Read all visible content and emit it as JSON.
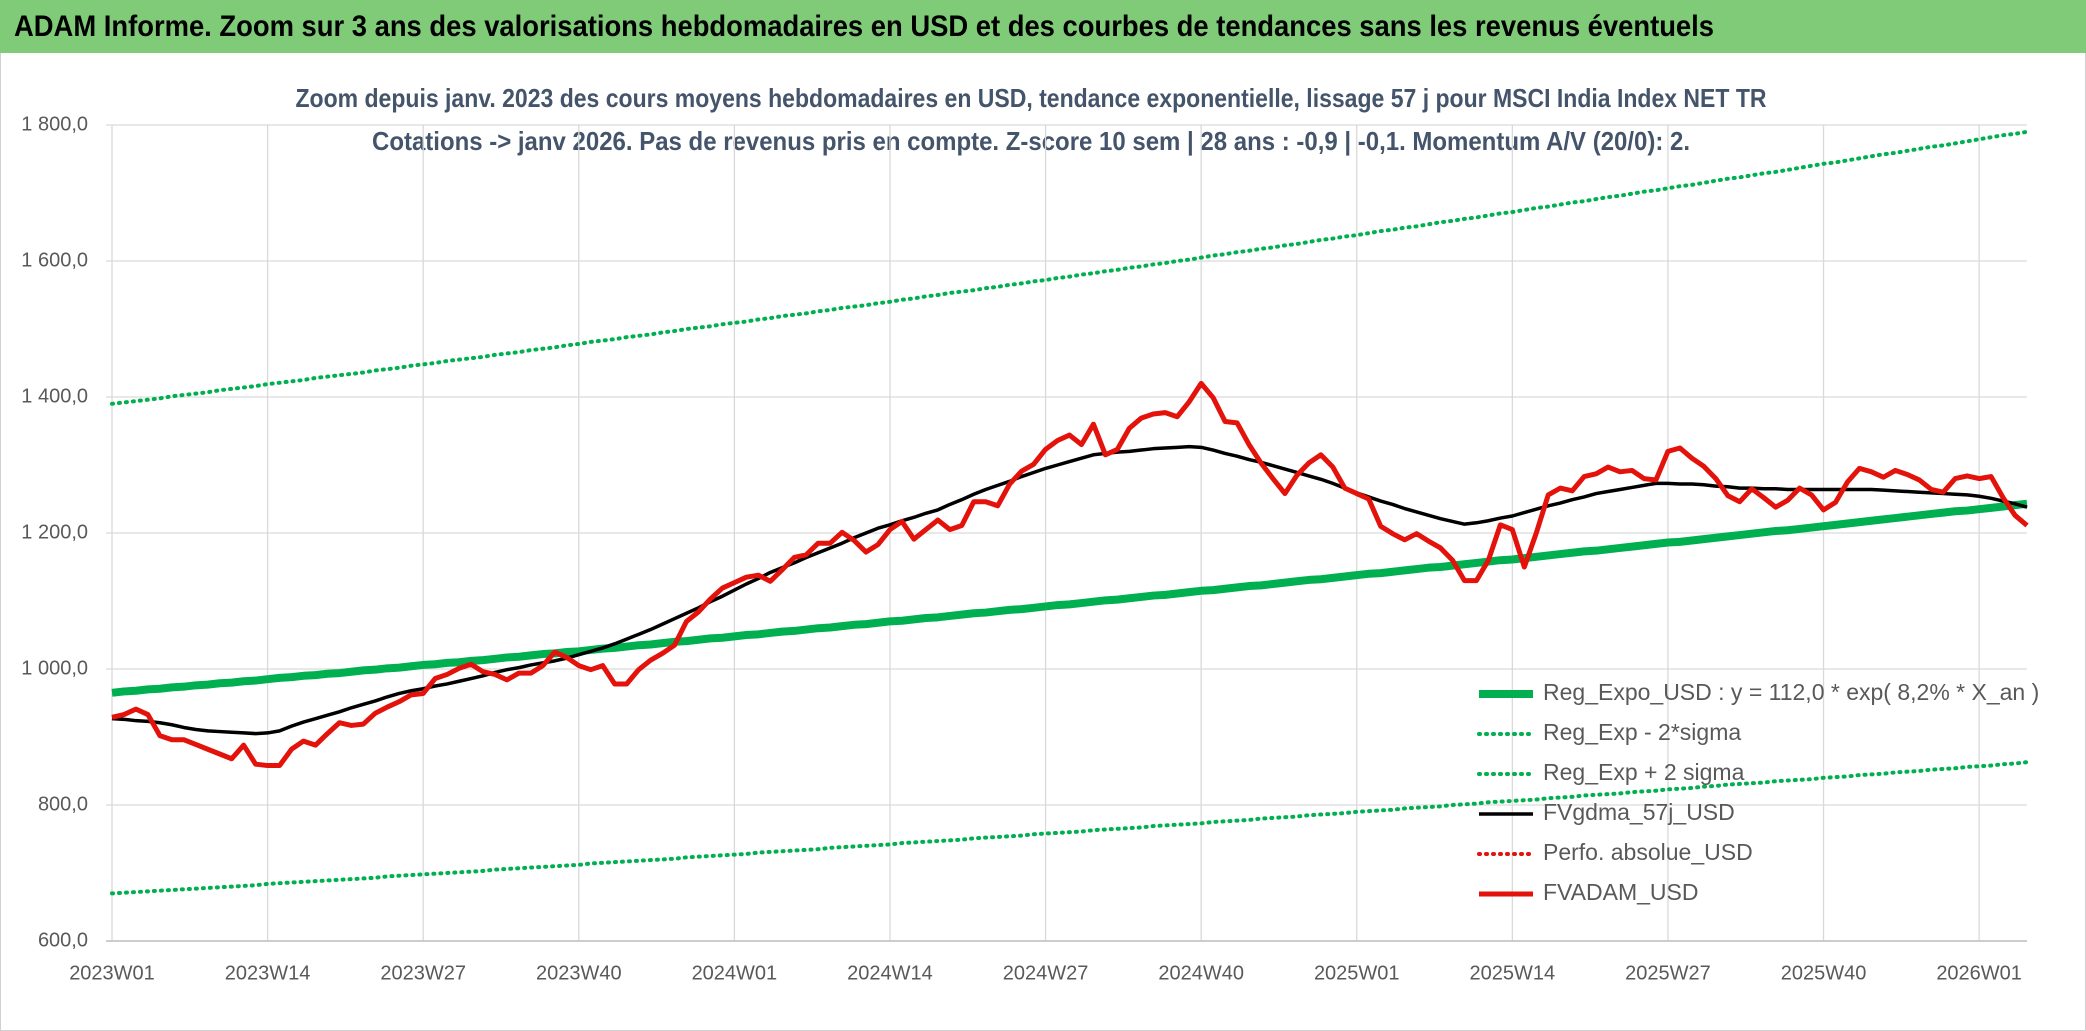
{
  "chart_data": {
    "type": "line",
    "title": "ADAM Informe. Zoom sur 3 ans des valorisations hebdomadaires en USD et des courbes de tendances sans les revenus éventuels",
    "subtitle": [
      "Zoom depuis janv. 2023 des cours moyens hebdomadaires en USD, tendance exponentielle, lissage 57 j pour MSCI India Index NET TR",
      "Cotations -> janv 2026. Pas de revenus pris en compte. Z-score 10 sem | 28 ans : -0,9 | -0,1. Momentum A/V (20/0): 2."
    ],
    "categories": [
      "2023W01",
      null,
      null,
      null,
      null,
      null,
      null,
      null,
      null,
      null,
      null,
      null,
      null,
      "2023W14",
      null,
      null,
      null,
      null,
      null,
      null,
      null,
      null,
      null,
      null,
      null,
      null,
      "2023W27",
      null,
      null,
      null,
      null,
      null,
      null,
      null,
      null,
      null,
      null,
      null,
      null,
      "2023W40",
      null,
      null,
      null,
      null,
      null,
      null,
      null,
      null,
      null,
      null,
      null,
      null,
      "2024W01",
      null,
      null,
      null,
      null,
      null,
      null,
      null,
      null,
      null,
      null,
      null,
      null,
      "2024W14",
      null,
      null,
      null,
      null,
      null,
      null,
      null,
      null,
      null,
      null,
      null,
      null,
      "2024W27",
      null,
      null,
      null,
      null,
      null,
      null,
      null,
      null,
      null,
      null,
      null,
      null,
      "2024W40",
      null,
      null,
      null,
      null,
      null,
      null,
      null,
      null,
      null,
      null,
      null,
      null,
      "2025W01",
      null,
      null,
      null,
      null,
      null,
      null,
      null,
      null,
      null,
      null,
      null,
      null,
      "2025W14",
      null,
      null,
      null,
      null,
      null,
      null,
      null,
      null,
      null,
      null,
      null,
      null,
      "2025W27",
      null,
      null,
      null,
      null,
      null,
      null,
      null,
      null,
      null,
      null,
      null,
      null,
      "2025W40",
      null,
      null,
      null,
      null,
      null,
      null,
      null,
      null,
      null,
      null,
      null,
      null,
      "2026W01",
      null,
      null,
      null,
      null
    ],
    "series": [
      {
        "name": "Reg_Expo_USD : y = 112,0 * exp( 8,2% *  X_an )",
        "color": "#00b050",
        "dash": "solid",
        "values": [
          965,
          967,
          968,
          970,
          971,
          973,
          974,
          976,
          977,
          979,
          980,
          982,
          983,
          985,
          987,
          988,
          990,
          991,
          993,
          994,
          996,
          998,
          999,
          1001,
          1002,
          1004,
          1006,
          1007,
          1009,
          1010,
          1012,
          1013,
          1015,
          1017,
          1018,
          1020,
          1022,
          1023,
          1025,
          1026,
          1028,
          1030,
          1031,
          1033,
          1035,
          1036,
          1038,
          1040,
          1041,
          1043,
          1045,
          1046,
          1048,
          1050,
          1051,
          1053,
          1055,
          1056,
          1058,
          1060,
          1061,
          1063,
          1065,
          1066,
          1068,
          1070,
          1071,
          1073,
          1075,
          1076,
          1078,
          1080,
          1082,
          1083,
          1085,
          1087,
          1088,
          1090,
          1092,
          1094,
          1095,
          1097,
          1099,
          1101,
          1102,
          1104,
          1106,
          1108,
          1109,
          1111,
          1113,
          1115,
          1116,
          1118,
          1120,
          1122,
          1123,
          1125,
          1127,
          1129,
          1131,
          1132,
          1134,
          1136,
          1138,
          1140,
          1141,
          1143,
          1145,
          1147,
          1149,
          1150,
          1152,
          1154,
          1156,
          1158,
          1160,
          1161,
          1163,
          1165,
          1167,
          1169,
          1171,
          1173,
          1174,
          1176,
          1178,
          1180,
          1182,
          1184,
          1186,
          1187,
          1189,
          1191,
          1193,
          1195,
          1197,
          1199,
          1201,
          1203,
          1204,
          1206,
          1208,
          1210,
          1212,
          1214,
          1216,
          1218,
          1220,
          1222,
          1224,
          1226,
          1228,
          1230,
          1232,
          1233,
          1235,
          1237,
          1239,
          1241,
          1243
        ]
      },
      {
        "name": "Reg_Exp - 2*sigma",
        "color": "#00b050",
        "dash": "dotted",
        "values": [
          670,
          671,
          672,
          673,
          674,
          675,
          676,
          677,
          678,
          679,
          680,
          681,
          682,
          684,
          685,
          686,
          687,
          688,
          689,
          690,
          691,
          692,
          693,
          695,
          696,
          697,
          698,
          699,
          700,
          701,
          702,
          703,
          705,
          706,
          707,
          708,
          709,
          710,
          711,
          712,
          714,
          715,
          716,
          717,
          718,
          719,
          720,
          721,
          723,
          724,
          725,
          726,
          727,
          728,
          730,
          731,
          732,
          733,
          734,
          735,
          737,
          738,
          739,
          740,
          741,
          742,
          744,
          745,
          746,
          747,
          748,
          749,
          751,
          752,
          753,
          754,
          755,
          757,
          758,
          759,
          760,
          761,
          763,
          764,
          765,
          766,
          767,
          769,
          770,
          771,
          772,
          773,
          775,
          776,
          777,
          778,
          780,
          781,
          782,
          783,
          785,
          786,
          787,
          788,
          790,
          791,
          792,
          793,
          795,
          796,
          797,
          798,
          800,
          801,
          802,
          804,
          805,
          806,
          807,
          808,
          810,
          811,
          812,
          814,
          815,
          816,
          817,
          819,
          820,
          821,
          823,
          824,
          825,
          827,
          828,
          830,
          831,
          832,
          833,
          835,
          836,
          837,
          838,
          840,
          841,
          842,
          844,
          845,
          846,
          848,
          849,
          850,
          852,
          853,
          854,
          856,
          857,
          858,
          860,
          861,
          863
        ]
      },
      {
        "name": "Reg_Exp + 2 sigma",
        "color": "#00b050",
        "dash": "dotted",
        "values": [
          1390,
          1392,
          1394,
          1396,
          1398,
          1401,
          1403,
          1405,
          1407,
          1410,
          1412,
          1414,
          1416,
          1419,
          1421,
          1423,
          1425,
          1428,
          1430,
          1432,
          1434,
          1436,
          1439,
          1441,
          1443,
          1446,
          1448,
          1450,
          1453,
          1455,
          1457,
          1459,
          1462,
          1464,
          1466,
          1469,
          1471,
          1473,
          1476,
          1478,
          1481,
          1483,
          1485,
          1488,
          1490,
          1492,
          1495,
          1497,
          1500,
          1502,
          1504,
          1507,
          1509,
          1511,
          1514,
          1516,
          1519,
          1521,
          1523,
          1526,
          1528,
          1531,
          1533,
          1535,
          1538,
          1540,
          1543,
          1545,
          1548,
          1550,
          1553,
          1555,
          1557,
          1560,
          1562,
          1565,
          1567,
          1570,
          1572,
          1575,
          1577,
          1580,
          1582,
          1585,
          1587,
          1590,
          1592,
          1595,
          1597,
          1600,
          1602,
          1605,
          1608,
          1610,
          1613,
          1615,
          1618,
          1620,
          1623,
          1625,
          1628,
          1631,
          1633,
          1636,
          1638,
          1641,
          1644,
          1646,
          1649,
          1651,
          1654,
          1657,
          1659,
          1662,
          1664,
          1667,
          1670,
          1672,
          1675,
          1678,
          1680,
          1683,
          1686,
          1688,
          1691,
          1694,
          1696,
          1699,
          1702,
          1704,
          1707,
          1710,
          1712,
          1715,
          1718,
          1721,
          1723,
          1726,
          1729,
          1731,
          1734,
          1737,
          1740,
          1743,
          1745,
          1748,
          1751,
          1754,
          1757,
          1759,
          1762,
          1765,
          1768,
          1770,
          1773,
          1776,
          1779,
          1782,
          1785,
          1787,
          1790
        ]
      },
      {
        "name": "FVgdma_57j_USD",
        "color": "#000000",
        "dash": "solid",
        "values": [
          927,
          926,
          924,
          923,
          921,
          918,
          914,
          911,
          909,
          908,
          907,
          906,
          905,
          906,
          909,
          916,
          922,
          927,
          932,
          937,
          943,
          948,
          953,
          959,
          964,
          968,
          971,
          975,
          978,
          982,
          986,
          990,
          995,
          999,
          1002,
          1006,
          1009,
          1012,
          1016,
          1021,
          1026,
          1031,
          1037,
          1044,
          1051,
          1058,
          1066,
          1074,
          1082,
          1090,
          1099,
          1107,
          1116,
          1125,
          1133,
          1142,
          1149,
          1156,
          1164,
          1171,
          1178,
          1185,
          1193,
          1200,
          1207,
          1212,
          1218,
          1223,
          1229,
          1234,
          1242,
          1249,
          1257,
          1264,
          1270,
          1276,
          1283,
          1289,
          1295,
          1300,
          1305,
          1310,
          1315,
          1317,
          1319,
          1320,
          1322,
          1324,
          1325,
          1326,
          1327,
          1326,
          1322,
          1317,
          1313,
          1308,
          1304,
          1299,
          1294,
          1289,
          1284,
          1279,
          1273,
          1266,
          1259,
          1253,
          1247,
          1242,
          1236,
          1231,
          1226,
          1221,
          1217,
          1213,
          1215,
          1218,
          1222,
          1225,
          1230,
          1235,
          1240,
          1244,
          1249,
          1253,
          1258,
          1261,
          1264,
          1267,
          1270,
          1273,
          1273,
          1272,
          1272,
          1271,
          1269,
          1268,
          1266,
          1266,
          1265,
          1265,
          1264,
          1264,
          1264,
          1264,
          1264,
          1264,
          1264,
          1264,
          1263,
          1262,
          1261,
          1260,
          1259,
          1258,
          1257,
          1256,
          1254,
          1251,
          1247,
          1243,
          1238
        ]
      },
      {
        "name": "Perfo. absolue_USD",
        "color": "#e3120b",
        "dash": "dotted",
        "values": [
          null,
          null,
          null,
          null,
          null,
          null,
          null,
          null,
          null,
          null,
          null,
          null,
          null,
          null,
          null,
          null,
          null,
          null,
          null,
          null,
          null,
          null,
          null,
          null,
          null,
          null,
          null,
          null,
          null,
          null,
          null,
          null,
          null,
          null,
          null,
          null,
          null,
          null,
          null,
          null,
          null,
          null,
          null,
          null,
          null,
          null,
          null,
          null,
          null,
          null,
          null,
          null,
          null,
          null,
          null,
          null,
          null,
          null,
          null,
          null,
          null,
          null,
          null,
          null,
          null,
          null,
          null,
          null,
          null,
          null,
          null,
          null,
          null,
          null,
          null,
          null,
          null,
          null,
          null,
          null,
          null,
          null,
          null,
          null,
          null,
          null,
          null,
          null,
          null,
          null,
          null,
          null,
          null,
          null,
          null,
          null,
          null,
          null,
          null,
          null,
          null,
          null,
          null,
          null,
          null,
          null,
          null,
          null,
          null,
          null,
          null,
          null,
          null,
          null,
          null,
          null,
          null,
          null,
          null,
          null,
          null,
          null,
          null,
          null,
          null,
          null,
          null,
          null,
          null,
          null,
          null,
          null,
          null,
          null,
          null,
          null,
          null,
          null,
          null,
          null,
          null,
          null,
          null,
          null,
          null,
          null,
          null,
          null,
          null,
          null,
          null,
          null,
          null,
          null,
          null,
          null,
          null,
          null,
          null,
          null,
          null
        ]
      },
      {
        "name": "FVADAM_USD",
        "color": "#e3120b",
        "dash": "solid",
        "values": [
          929,
          933,
          941,
          933,
          902,
          896,
          896,
          889,
          882,
          875,
          868,
          888,
          860,
          858,
          858,
          882,
          894,
          888,
          905,
          921,
          917,
          919,
          935,
          944,
          952,
          962,
          964,
          986,
          992,
          1001,
          1007,
          996,
          992,
          984,
          994,
          994,
          1005,
          1025,
          1017,
          1005,
          999,
          1005,
          978,
          978,
          999,
          1013,
          1023,
          1035,
          1070,
          1084,
          1103,
          1119,
          1127,
          1135,
          1138,
          1129,
          1146,
          1164,
          1168,
          1185,
          1185,
          1201,
          1189,
          1172,
          1183,
          1205,
          1217,
          1191,
          1205,
          1219,
          1205,
          1211,
          1246,
          1246,
          1240,
          1272,
          1291,
          1301,
          1323,
          1336,
          1344,
          1330,
          1360,
          1315,
          1323,
          1354,
          1369,
          1375,
          1377,
          1371,
          1393,
          1420,
          1399,
          1364,
          1362,
          1330,
          1303,
          1280,
          1258,
          1285,
          1303,
          1315,
          1297,
          1266,
          1258,
          1250,
          1210,
          1199,
          1190,
          1199,
          1188,
          1178,
          1160,
          1130,
          1130,
          1160,
          1212,
          1205,
          1150,
          1200,
          1256,
          1266,
          1262,
          1283,
          1287,
          1297,
          1290,
          1292,
          1280,
          1278,
          1320,
          1325,
          1310,
          1298,
          1280,
          1255,
          1246,
          1265,
          1252,
          1238,
          1248,
          1266,
          1256,
          1234,
          1245,
          1275,
          1295,
          1290,
          1282,
          1292,
          1286,
          1278,
          1264,
          1260,
          1280,
          1284,
          1280,
          1283,
          1252,
          1226,
          1211
        ]
      }
    ],
    "ylim": [
      600,
      1800
    ],
    "yticks": [
      {
        "value": 600,
        "label": "600,0"
      },
      {
        "value": 800,
        "label": "800,0"
      },
      {
        "value": 1000,
        "label": "1 000,0"
      },
      {
        "value": 1200,
        "label": "1 200,0"
      },
      {
        "value": 1400,
        "label": "1 400,0"
      },
      {
        "value": 1600,
        "label": "1 600,0"
      },
      {
        "value": 1800,
        "label": "1 800,0"
      }
    ],
    "grid": true,
    "legend": "lower-right"
  }
}
